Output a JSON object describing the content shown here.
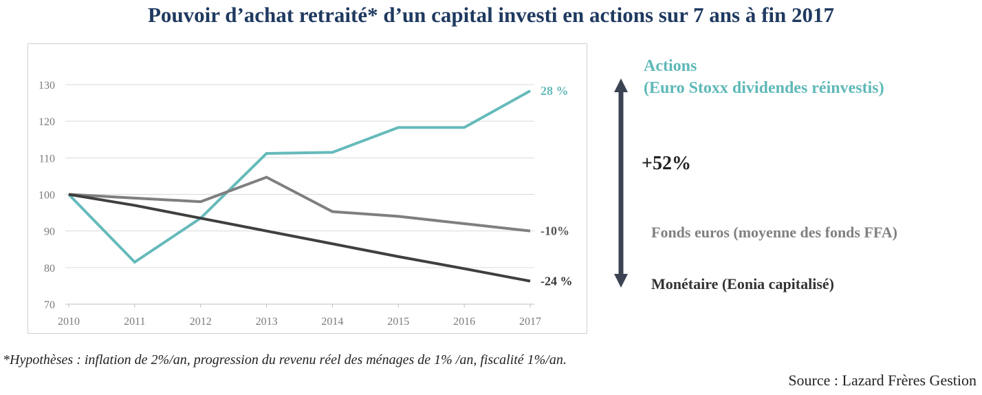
{
  "title": "Pouvoir d’achat retraité* d’un capital investi en actions sur 7 ans à fin 2017",
  "colors": {
    "actions": "#66baba",
    "fonds": "#7f7f7f",
    "monetaire": "#3f3f3f",
    "arrow": "#3b4353",
    "title": "#1f3a60"
  },
  "chart_data": {
    "type": "line",
    "x": [
      "2010",
      "2011",
      "2012",
      "2013",
      "2014",
      "2015",
      "2016",
      "2017"
    ],
    "ylim": [
      70,
      130
    ],
    "yticks": [
      70,
      80,
      90,
      100,
      110,
      120,
      130
    ],
    "grid": true,
    "series": [
      {
        "name": "Actions (Euro Stoxx dividendes réinvestis)",
        "values": [
          100,
          81.5,
          93.5,
          111.2,
          111.5,
          118.3,
          118.3,
          128.3
        ],
        "end_label": "28 %"
      },
      {
        "name": "Fonds euros (moyenne des fonds FFA)",
        "values": [
          100,
          99,
          98,
          104.7,
          95.3,
          94,
          92,
          90
        ],
        "end_label": "-10%"
      },
      {
        "name": "Monétaire (Eonia capitalisé)",
        "values": [
          100,
          97,
          93.5,
          90,
          86.5,
          83,
          79.7,
          76.3
        ],
        "end_label": "-24 %"
      }
    ]
  },
  "legend": {
    "actions_line1": "Actions",
    "actions_line2": "(Euro Stoxx dividendes réinvestis)",
    "delta": "+52%",
    "fonds": "Fonds euros (moyenne des fonds FFA)",
    "monetaire": "Monétaire (Eonia capitalisé)"
  },
  "footnote": "*Hypothèses : inflation de 2%/an, progression du revenu réel des ménages de 1% /an, fiscalité 1%/an.",
  "source": "Source : Lazard Frères Gestion"
}
